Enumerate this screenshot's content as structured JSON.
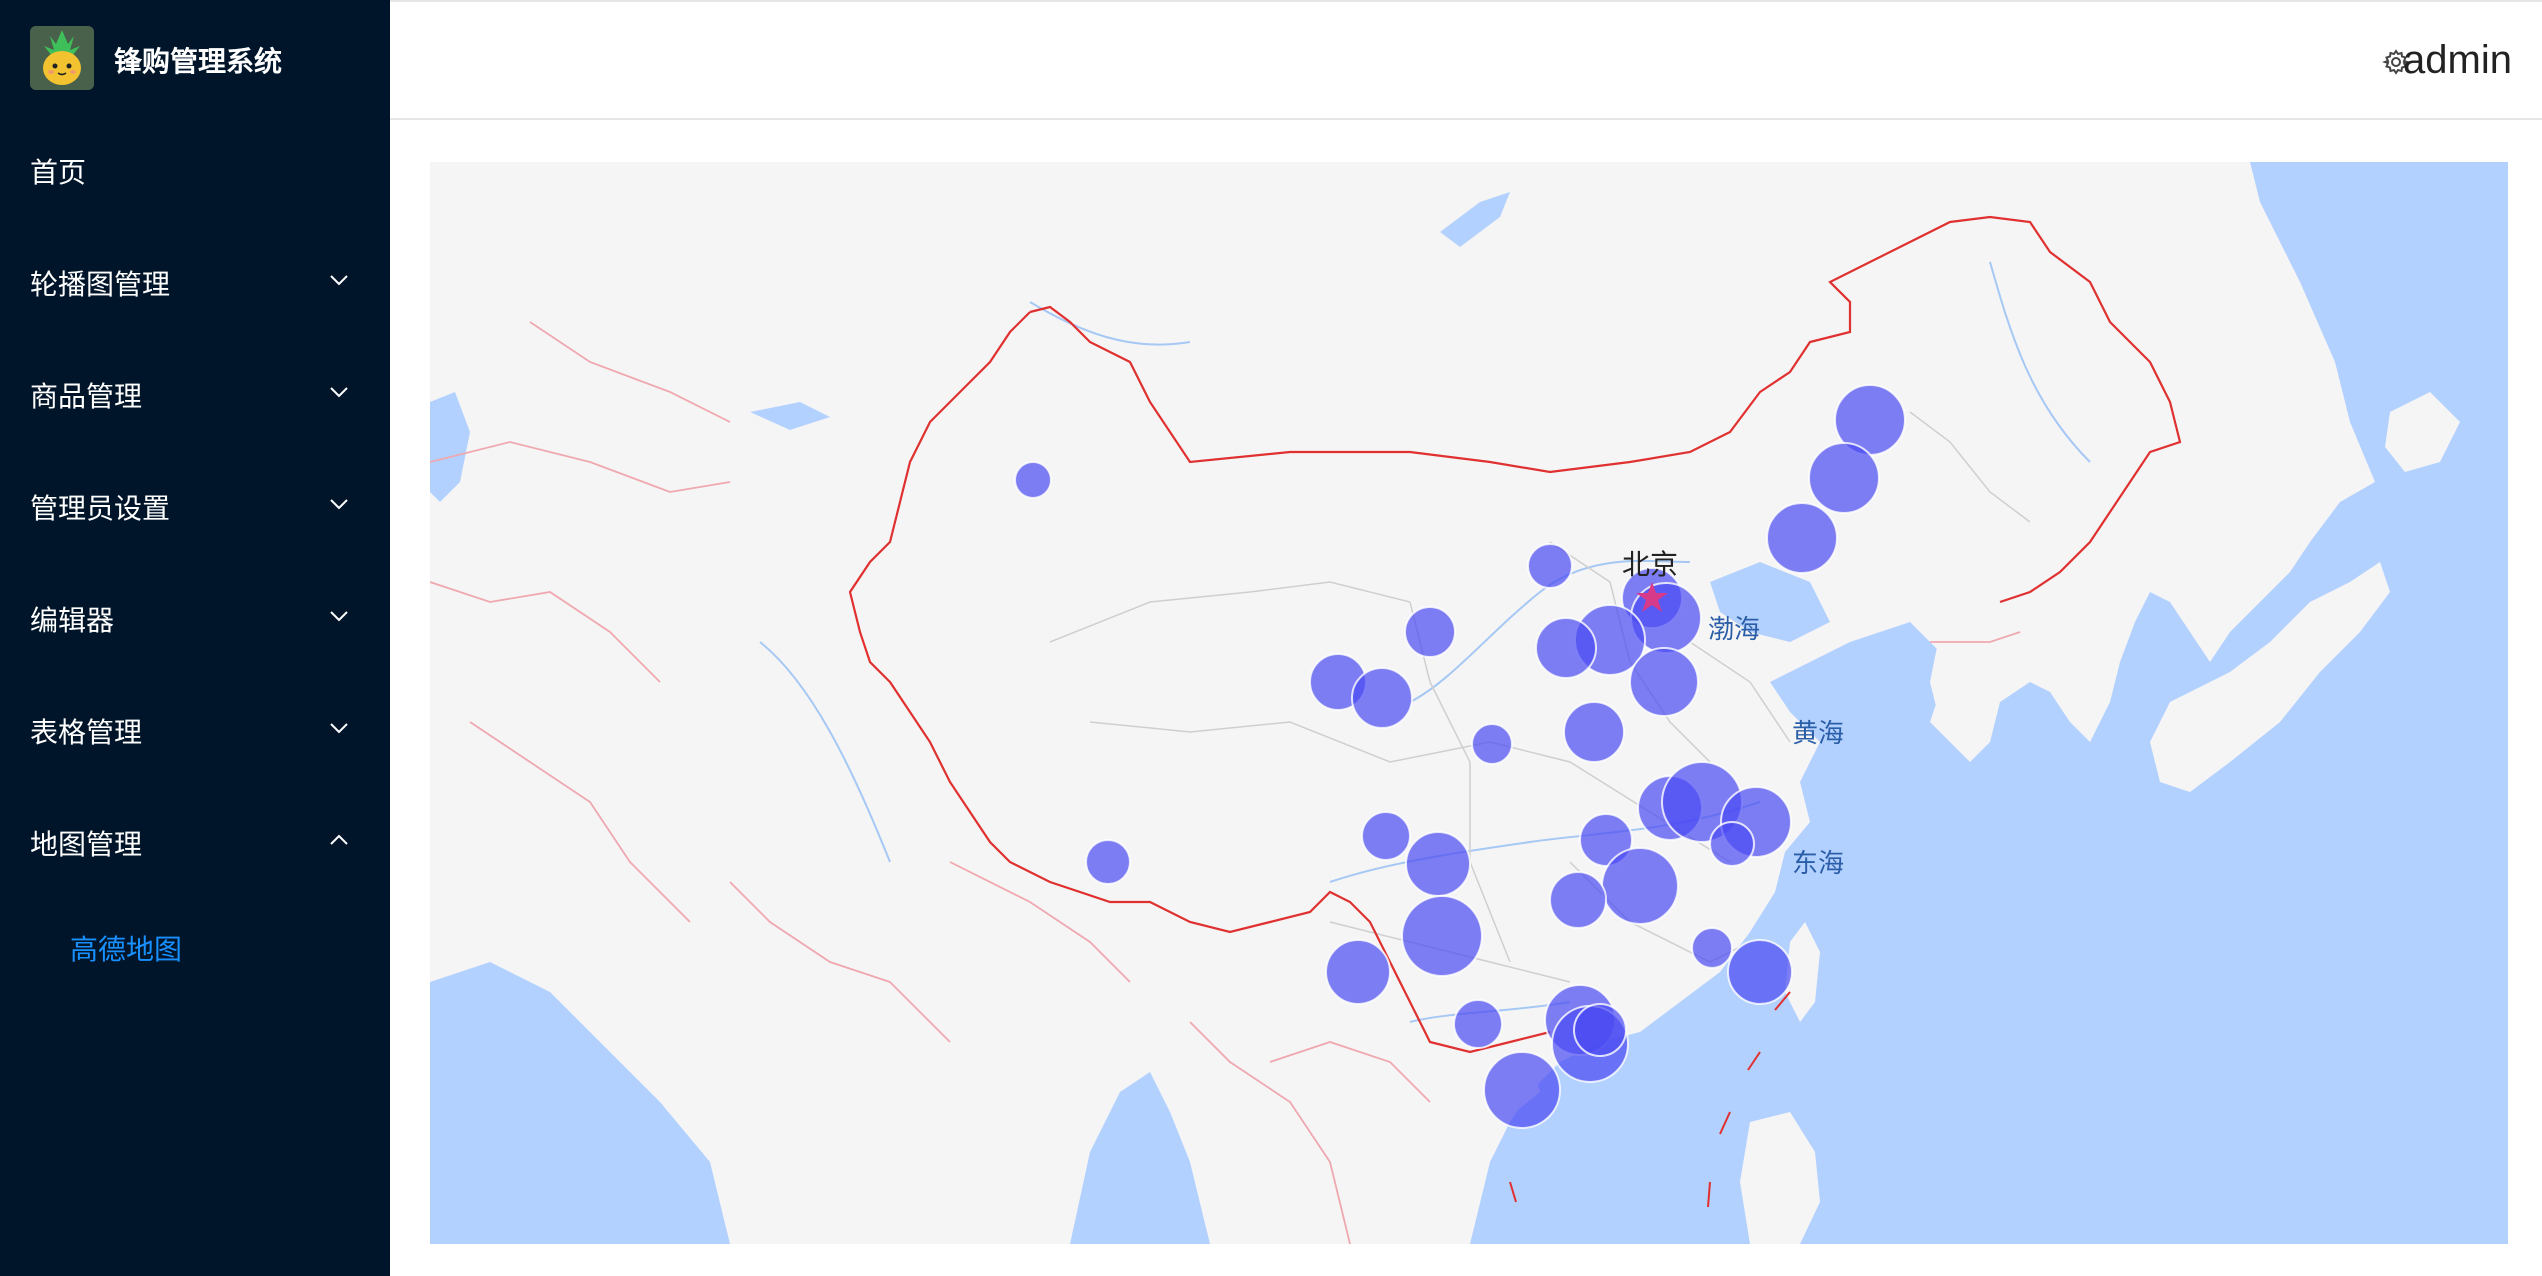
{
  "app": {
    "title": "锋购管理系统"
  },
  "header": {
    "user_name": "admin"
  },
  "sidebar": {
    "items": [
      {
        "label": "首页",
        "has_children": false
      },
      {
        "label": "轮播图管理",
        "has_children": true,
        "expanded": false
      },
      {
        "label": "商品管理",
        "has_children": true,
        "expanded": false
      },
      {
        "label": "管理员设置",
        "has_children": true,
        "expanded": false
      },
      {
        "label": "编辑器",
        "has_children": true,
        "expanded": false
      },
      {
        "label": "表格管理",
        "has_children": true,
        "expanded": false
      },
      {
        "label": "地图管理",
        "has_children": true,
        "expanded": true
      }
    ],
    "active_sub_item": {
      "label": "高德地图"
    }
  },
  "map": {
    "labels": {
      "capital": "北京",
      "bohai": "渤海",
      "huanghai": "黄海",
      "donghai": "东海"
    },
    "colors": {
      "land": "#f5f5f5",
      "water": "#b3d1ff",
      "border_country": "#e03030",
      "border_neighbor": "#f0a8b0",
      "rivers": "#a6c8f5",
      "bubble": "#4a4af2",
      "active_menu": "#1890ff",
      "sidebar": "#001529"
    },
    "icons": [
      "settings-icon",
      "chevron-down-icon",
      "chevron-up-icon",
      "app-logo"
    ]
  }
}
